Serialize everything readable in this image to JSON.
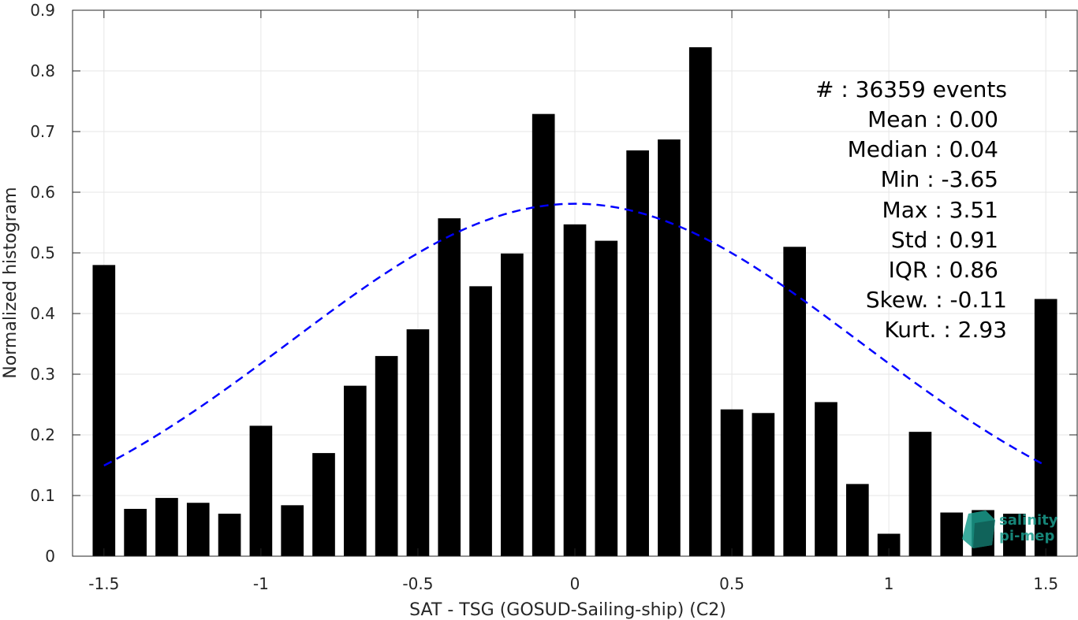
{
  "chart_data": {
    "type": "bar",
    "xlabel": "SAT - TSG (GOSUD-Sailing-ship) (C2)",
    "ylabel": "Normalized histogram",
    "xlim": [
      -1.6,
      1.6
    ],
    "ylim": [
      0,
      0.9
    ],
    "xticks": [
      -1.5,
      -1,
      -0.5,
      0,
      0.5,
      1,
      1.5
    ],
    "xtick_labels": [
      "-1.5",
      "-1",
      "-0.5",
      "0",
      "0.5",
      "1",
      "1.5"
    ],
    "yticks": [
      0,
      0.1,
      0.2,
      0.3,
      0.4,
      0.5,
      0.6,
      0.7,
      0.8,
      0.9
    ],
    "ytick_labels": [
      "0",
      "0.1",
      "0.2",
      "0.3",
      "0.4",
      "0.5",
      "0.6",
      "0.7",
      "0.8",
      "0.9"
    ],
    "grid": true,
    "bar_color": "#000000",
    "fit_color": "#0000ff",
    "x": [
      -1.5,
      -1.4,
      -1.3,
      -1.2,
      -1.1,
      -1.0,
      -0.9,
      -0.8,
      -0.7,
      -0.6,
      -0.5,
      -0.4,
      -0.3,
      -0.2,
      -0.1,
      0.0,
      0.1,
      0.2,
      0.3,
      0.4,
      0.5,
      0.6,
      0.7,
      0.8,
      0.9,
      1.0,
      1.1,
      1.2,
      1.3,
      1.4,
      1.5
    ],
    "values": [
      0.48,
      0.078,
      0.096,
      0.088,
      0.07,
      0.215,
      0.084,
      0.17,
      0.281,
      0.33,
      0.374,
      0.557,
      0.445,
      0.499,
      0.729,
      0.547,
      0.52,
      0.669,
      0.687,
      0.839,
      0.242,
      0.236,
      0.51,
      0.254,
      0.119,
      0.037,
      0.205,
      0.072,
      0.076,
      0.07,
      0.424
    ],
    "fit": {
      "type": "normal",
      "mean": 0.0,
      "std": 0.91,
      "peak": 0.581,
      "x_range": [
        -1.5,
        1.5
      ]
    },
    "stats_lines": [
      "#  : 36359 events",
      "Mean : 0.00",
      "Median : 0.04",
      "Min : -3.65",
      "Max : 3.51",
      "Std : 0.91",
      "IQR : 0.86",
      "Skew. : -0.11",
      "Kurt. : 2.93"
    ]
  },
  "logo": {
    "line1": "salinity",
    "line2": "pi-mep",
    "color": "#1a9c8c"
  }
}
